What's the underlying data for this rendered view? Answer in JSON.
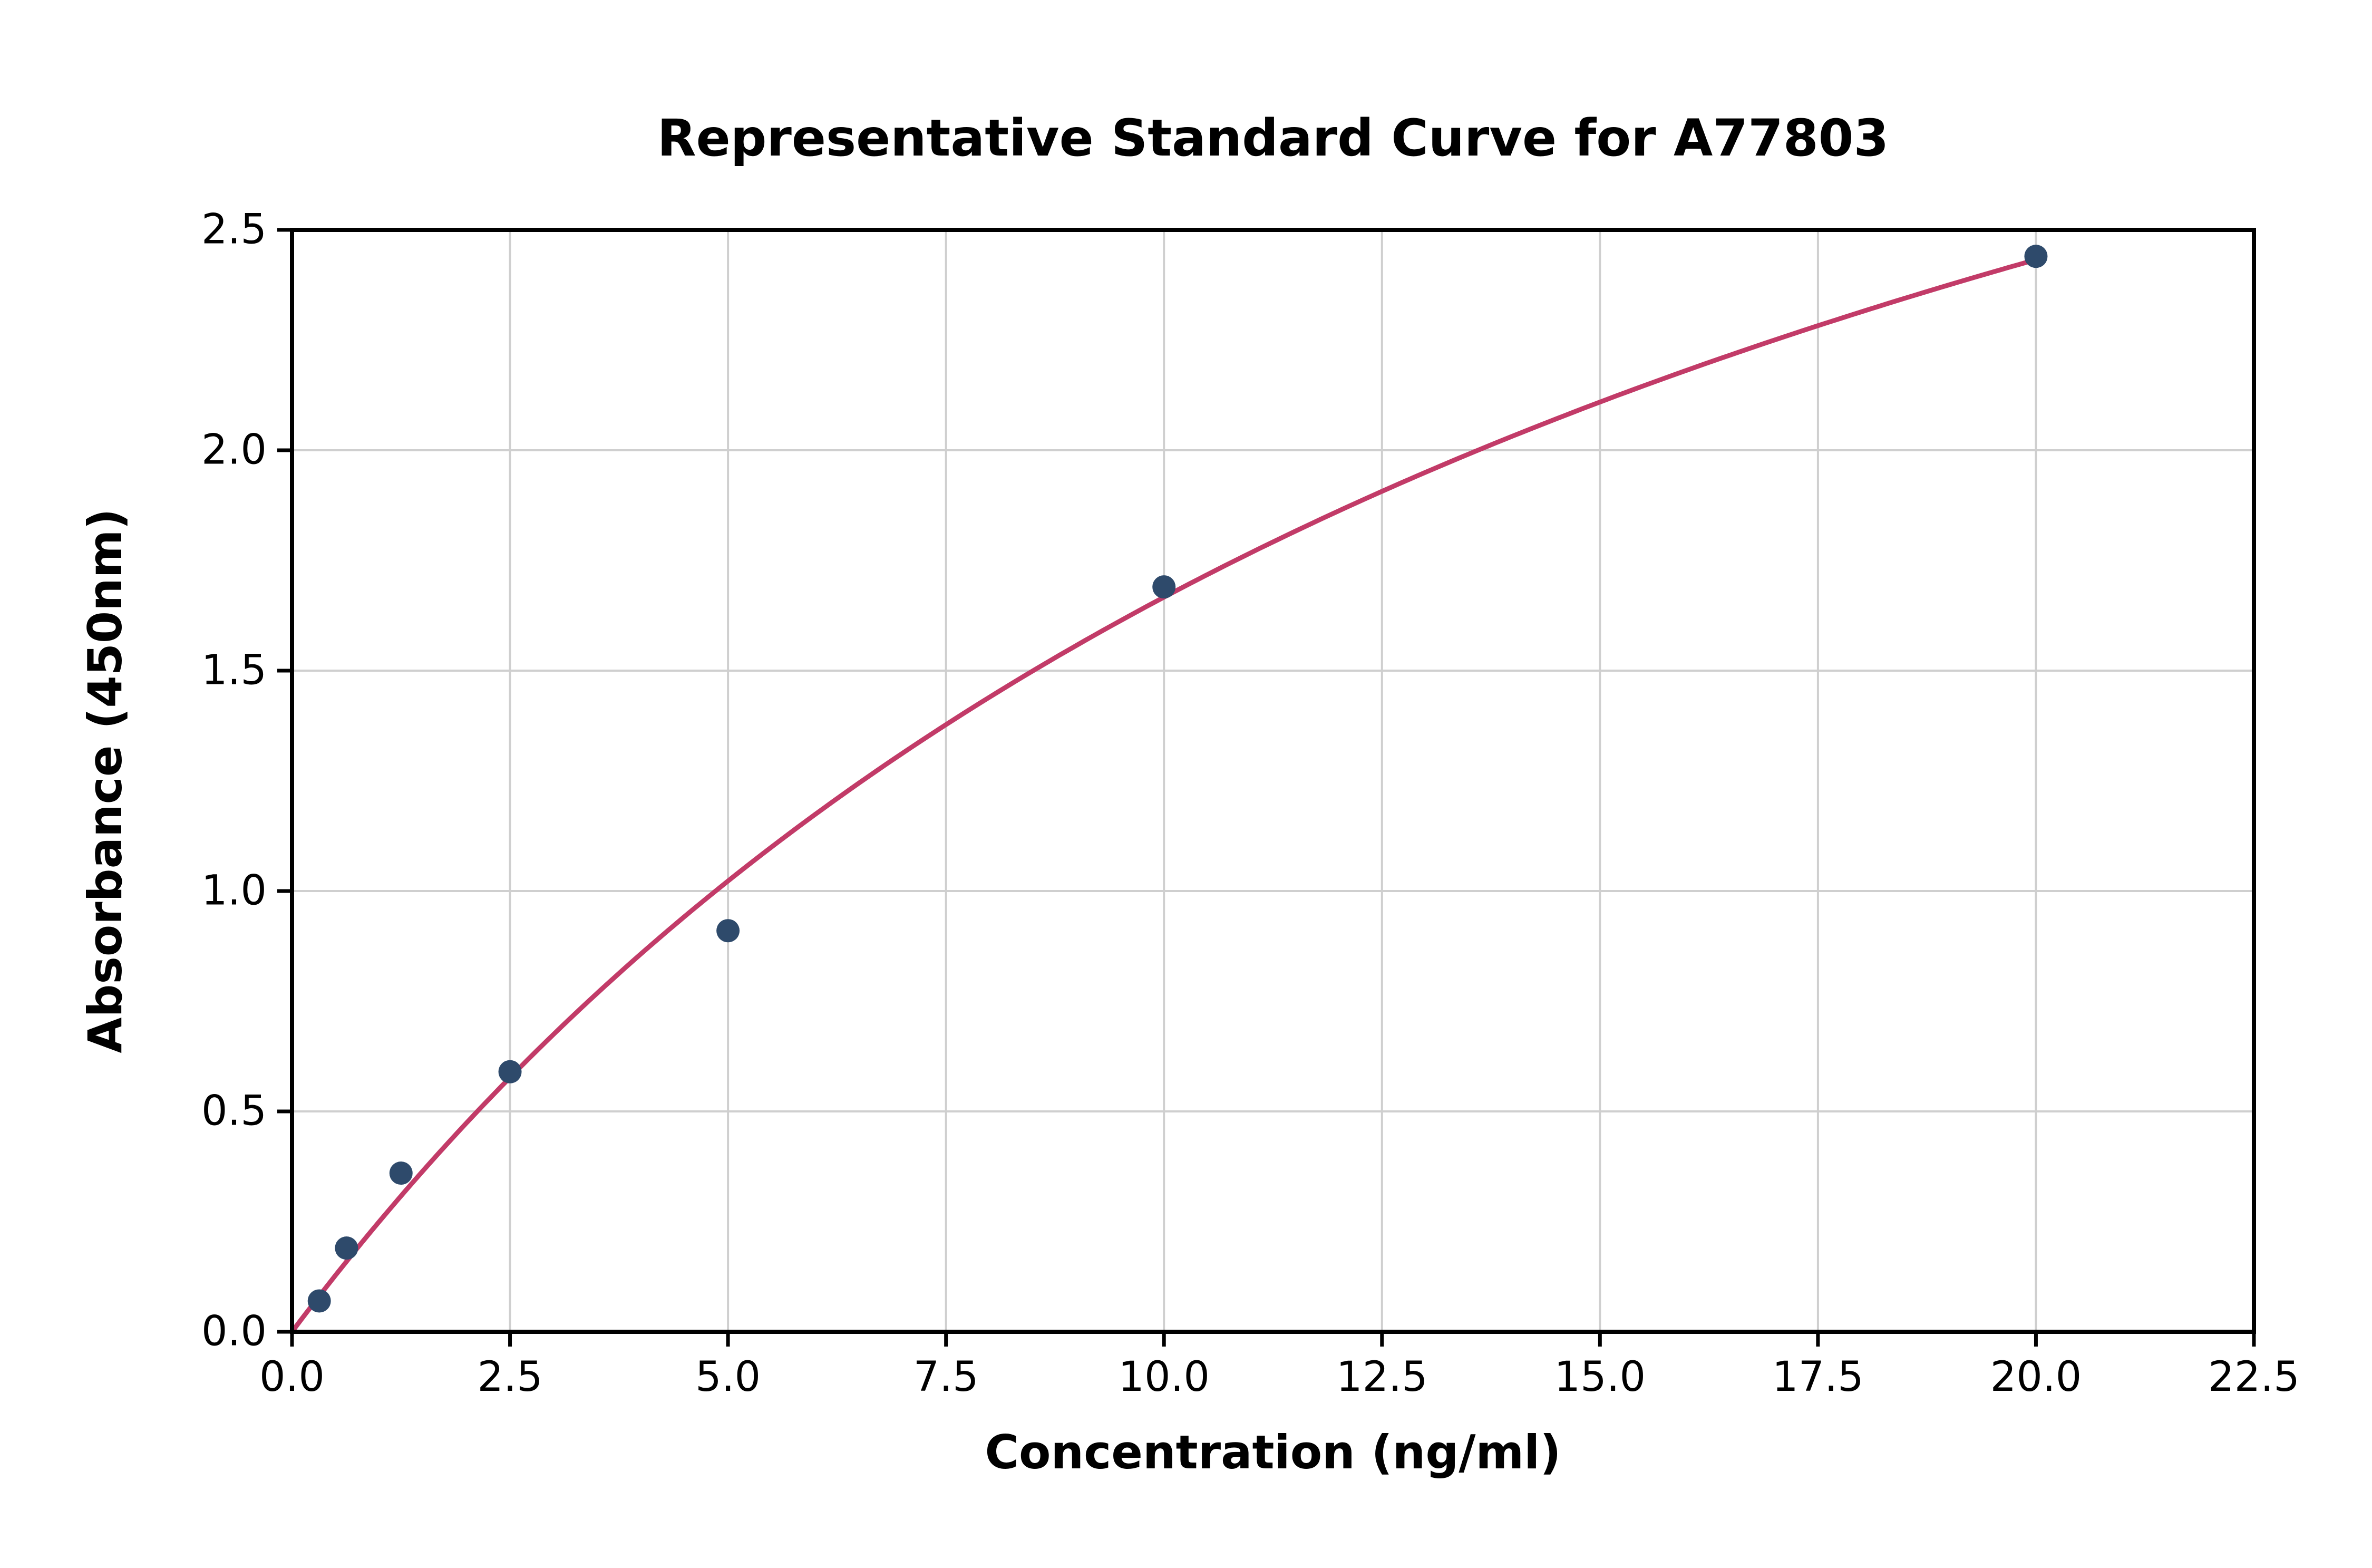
{
  "chart_data": {
    "type": "scatter",
    "title": "Representative Standard Curve for A77803",
    "xlabel": "Concentration (ng/ml)",
    "ylabel": "Absorbance (450nm)",
    "xlim": [
      0,
      22.5
    ],
    "ylim": [
      0,
      2.5
    ],
    "xticks": [
      0,
      2.5,
      5,
      7.5,
      10,
      12.5,
      15,
      17.5,
      20,
      22.5
    ],
    "xtick_labels": [
      "0.0",
      "2.5",
      "5.0",
      "7.5",
      "10.0",
      "12.5",
      "15.0",
      "17.5",
      "20.0",
      "22.5"
    ],
    "yticks": [
      0,
      0.5,
      1,
      1.5,
      2,
      2.5
    ],
    "ytick_labels": [
      "0.0",
      "0.5",
      "1.0",
      "1.5",
      "2.0",
      "2.5"
    ],
    "grid": true,
    "legend": "none",
    "points": [
      {
        "x": 0.3125,
        "y": 0.07
      },
      {
        "x": 0.625,
        "y": 0.19
      },
      {
        "x": 1.25,
        "y": 0.36
      },
      {
        "x": 2.5,
        "y": 0.59
      },
      {
        "x": 5.0,
        "y": 0.91
      },
      {
        "x": 10.0,
        "y": 1.69
      },
      {
        "x": 20.0,
        "y": 2.44
      }
    ],
    "fit_curve": {
      "type": "michaelis_menten",
      "vmax": 4.5,
      "km": 17.0,
      "x_start": 0.0,
      "x_end": 20.0
    },
    "colors": {
      "points": "#2e4a6b",
      "curve": "#c23b68",
      "grid": "#cfcfcf",
      "axis": "#000000",
      "text": "#000000",
      "background": "#ffffff"
    }
  }
}
